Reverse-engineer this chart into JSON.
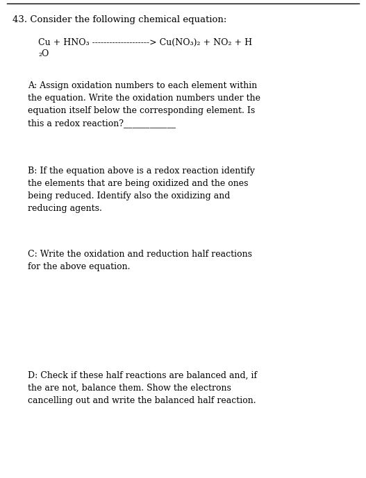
{
  "bg_color": "#ffffff",
  "border_color": "#000000",
  "title_number": "43. ",
  "title_text": "Consider the following chemical equation:",
  "equation_line1": "Cu + HNO₃ --------------------> Cu(NO₃)₂ + NO₂ + H",
  "equation_line2": "₂O",
  "section_A_text": "A: Assign oxidation numbers to each element within\nthe equation. Write the oxidation numbers under the\nequation itself below the corresponding element. Is\nthis a redox reaction?____________",
  "section_B_text": "B: If the equation above is a redox reaction identify\nthe elements that are being oxidized and the ones\nbeing reduced. Identify also the oxidizing and\nreducing agents.",
  "section_C_text": "C: Write the oxidation and reduction half reactions\nfor the above equation.",
  "section_D_text": "D: Check if these half reactions are balanced and, if\nthe are not, balance them. Show the electrons\ncancelling out and write the balanced half reaction.",
  "font_size_title": 9.5,
  "font_size_body": 9.0,
  "font_family": "DejaVu Serif",
  "fig_width": 5.27,
  "fig_height": 6.89,
  "dpi": 100
}
